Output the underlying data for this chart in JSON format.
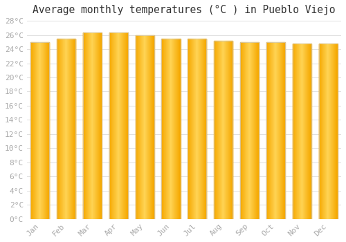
{
  "title": "Average monthly temperatures (°C ) in Pueblo Viejo",
  "months": [
    "Jan",
    "Feb",
    "Mar",
    "Apr",
    "May",
    "Jun",
    "Jul",
    "Aug",
    "Sep",
    "Oct",
    "Nov",
    "Dec"
  ],
  "values": [
    25.0,
    25.5,
    26.3,
    26.3,
    26.0,
    25.5,
    25.5,
    25.2,
    25.0,
    25.0,
    24.8,
    24.8
  ],
  "bar_color_edge": "#F5A800",
  "bar_color_center": "#FFD455",
  "ylim": [
    0,
    28
  ],
  "ytick_step": 2,
  "background_color": "#ffffff",
  "grid_color": "#e0e0e0",
  "title_fontsize": 10.5,
  "tick_fontsize": 8,
  "tick_label_color": "#aaaaaa",
  "font_family": "monospace",
  "bar_edge_color": "#cccccc",
  "bar_width": 0.72
}
